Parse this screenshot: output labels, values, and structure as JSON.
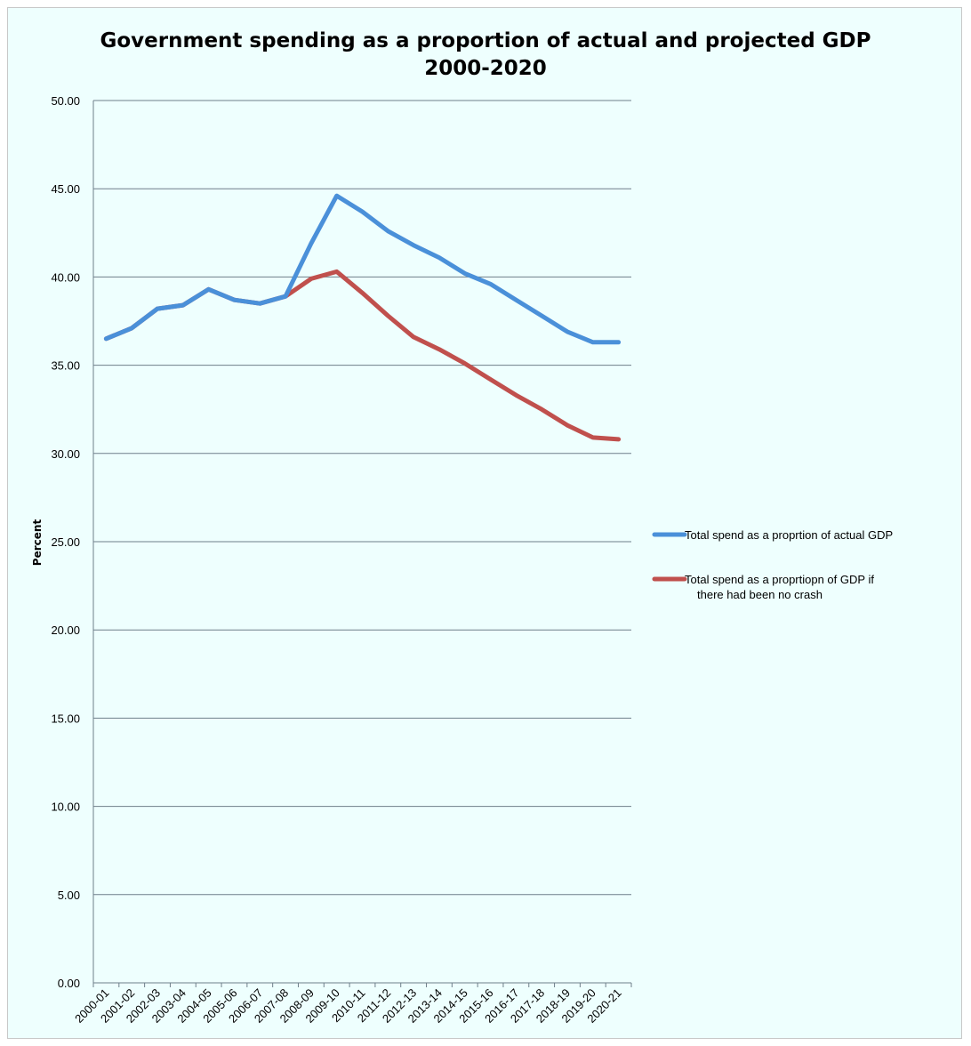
{
  "chart_data": {
    "type": "line",
    "title": "Government spending as a proportion of actual and projected GDP",
    "subtitle": "2000-2020",
    "ylabel": "Percent",
    "xlabel": "",
    "ylim": [
      0,
      50
    ],
    "yticks": [
      "0.00",
      "5.00",
      "10.00",
      "15.00",
      "20.00",
      "25.00",
      "30.00",
      "35.00",
      "40.00",
      "45.00",
      "50.00"
    ],
    "grid": true,
    "legend_position": "right",
    "categories": [
      "2000-01",
      "2001-02",
      "2002-03",
      "2003-04",
      "2004-05",
      "2005-06",
      "2006-07",
      "2007-08",
      "2008-09",
      "2009-10",
      "2010-11",
      "2011-12",
      "2012-13",
      "2013-14",
      "2014-15",
      "2015-16",
      "2016-17",
      "2017-18",
      "2018-19",
      "2019-20",
      "2020-21"
    ],
    "series": [
      {
        "name": "Total spend as a proprtion of actual GDP",
        "color": "#4a90d9",
        "values": [
          36.5,
          37.1,
          38.2,
          38.4,
          39.3,
          38.7,
          38.5,
          38.9,
          41.9,
          44.6,
          43.7,
          42.6,
          41.8,
          41.1,
          40.2,
          39.6,
          38.7,
          37.8,
          36.9,
          36.3,
          36.3
        ]
      },
      {
        "name": "Total spend as a proprtiopn of GDP if there had been no crash",
        "color": "#c0504d",
        "values": [
          36.5,
          37.1,
          38.2,
          38.4,
          39.3,
          38.7,
          38.5,
          38.9,
          39.9,
          40.3,
          39.1,
          37.8,
          36.6,
          35.9,
          35.1,
          34.2,
          33.3,
          32.5,
          31.6,
          30.9,
          30.8
        ]
      }
    ]
  }
}
